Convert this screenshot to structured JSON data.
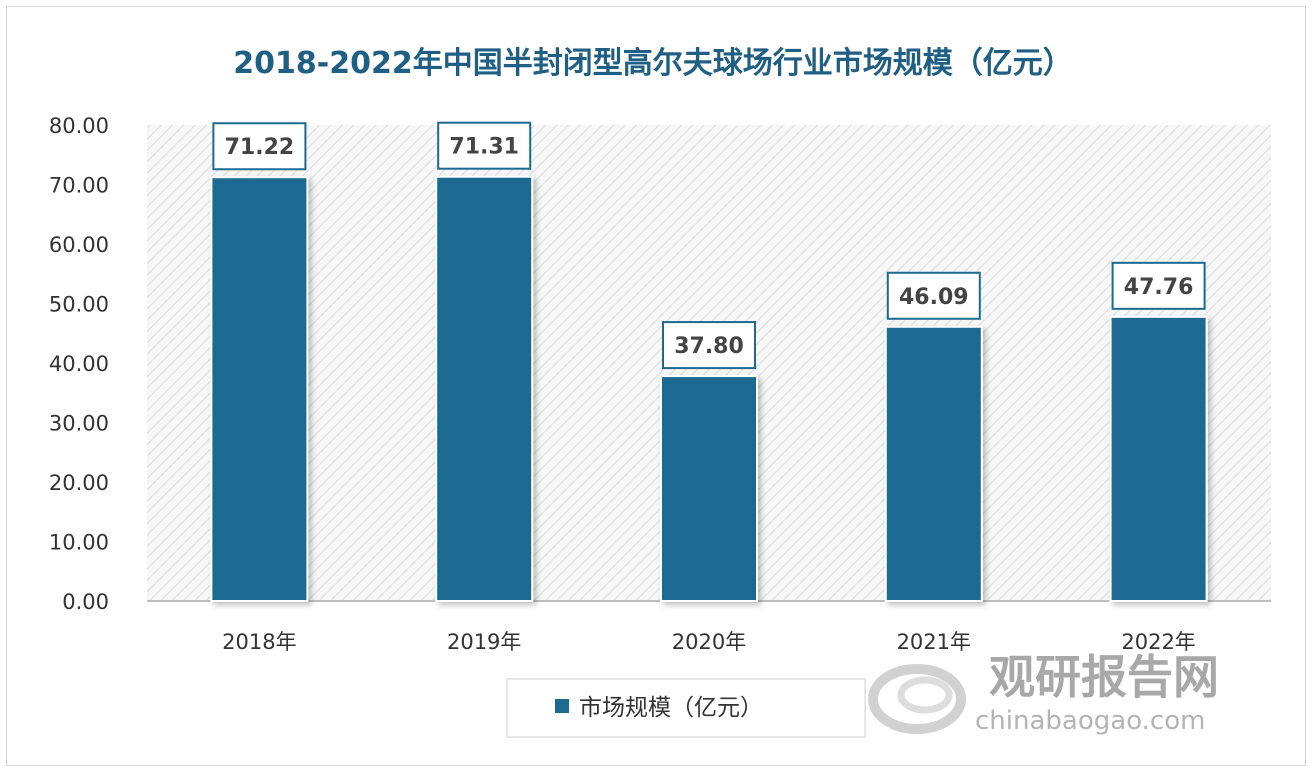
{
  "chart_data": {
    "type": "bar",
    "title": "2018-2022年中国半封闭型高尔夫球场行业市场规模（亿元）",
    "categories": [
      "2018年",
      "2019年",
      "2020年",
      "2021年",
      "2022年"
    ],
    "series": [
      {
        "name": "市场规模（亿元）",
        "values": [
          71.22,
          71.31,
          37.8,
          46.09,
          47.76
        ]
      }
    ],
    "data_labels": [
      "71.22",
      "71.31",
      "37.80",
      "46.09",
      "47.76"
    ],
    "yticks": [
      "0.00",
      "10.00",
      "20.00",
      "30.00",
      "40.00",
      "50.00",
      "60.00",
      "70.00",
      "80.00"
    ],
    "ylim": [
      0,
      80
    ],
    "xlabel": "",
    "ylabel": "",
    "grid": false,
    "legend_position": "bottom",
    "bar_color": "#1a6a92",
    "title_color": "#1f5f86",
    "plot_background": "hatched light gray"
  },
  "watermark": {
    "brand": "观研报告网",
    "site": "chinabaogao.com"
  }
}
